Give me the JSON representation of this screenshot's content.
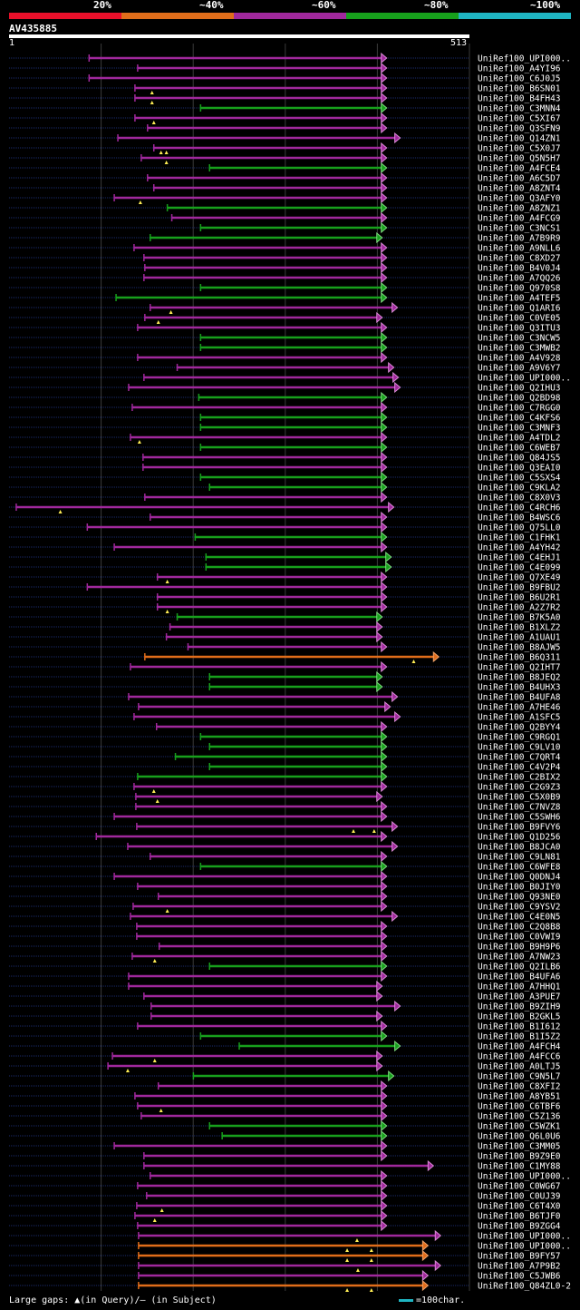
{
  "legend": {
    "items": [
      {
        "label": "20%",
        "color": "#e8102a"
      },
      {
        "label": "~40%",
        "color": "#e06d1a"
      },
      {
        "label": "~60%",
        "color": "#a0289c"
      },
      {
        "label": "~80%",
        "color": "#17a01c"
      },
      {
        "label": "~100%",
        "color": "#1fb5c2"
      }
    ]
  },
  "query": {
    "name": "AV435885",
    "start": "1",
    "end": "513"
  },
  "footer": {
    "gaps_text": "Large gaps: ▲(in Query)/– (in Subject)",
    "scale_text": "=100char."
  },
  "chart_data": {
    "type": "alignment",
    "query_length": 513,
    "gridlines": [
      20,
      40,
      60,
      80,
      100
    ],
    "hits": [
      {
        "name": "UniRef100_UPI000..",
        "start": 90,
        "end": 420,
        "color": "mag",
        "gaps": []
      },
      {
        "name": "UniRef100_A4YI96",
        "start": 144,
        "end": 420,
        "color": "mag",
        "gaps": []
      },
      {
        "name": "UniRef100_C6J0J5",
        "start": 90,
        "end": 420,
        "color": "mag",
        "gaps": []
      },
      {
        "name": "UniRef100_B6SN01",
        "start": 141,
        "end": 420,
        "color": "mag",
        "gaps": [
          160
        ]
      },
      {
        "name": "UniRef100_B4FH43",
        "start": 141,
        "end": 420,
        "color": "mag",
        "gaps": [
          160
        ]
      },
      {
        "name": "UniRef100_C3MNN4",
        "start": 214,
        "end": 420,
        "color": "grn",
        "gaps": []
      },
      {
        "name": "UniRef100_C5XI67",
        "start": 141,
        "end": 420,
        "color": "mag",
        "gaps": [
          162
        ]
      },
      {
        "name": "UniRef100_Q3SFN9",
        "start": 155,
        "end": 420,
        "color": "mag",
        "gaps": []
      },
      {
        "name": "UniRef100_Q14ZN1",
        "start": 122,
        "end": 435,
        "color": "mag",
        "gaps": []
      },
      {
        "name": "UniRef100_C5X0J7",
        "start": 162,
        "end": 420,
        "color": "mag",
        "gaps": [
          170,
          176
        ]
      },
      {
        "name": "UniRef100_Q5N5H7",
        "start": 148,
        "end": 420,
        "color": "mag",
        "gaps": [
          176
        ]
      },
      {
        "name": "UniRef100_A4FCE4",
        "start": 224,
        "end": 420,
        "color": "grn",
        "gaps": []
      },
      {
        "name": "UniRef100_A6C5D7",
        "start": 155,
        "end": 420,
        "color": "mag",
        "gaps": []
      },
      {
        "name": "UniRef100_A8ZNT4",
        "start": 162,
        "end": 420,
        "color": "mag",
        "gaps": []
      },
      {
        "name": "UniRef100_Q3AFY0",
        "start": 118,
        "end": 420,
        "color": "mag",
        "gaps": [
          147
        ]
      },
      {
        "name": "UniRef100_A8ZNZ1",
        "start": 177,
        "end": 420,
        "color": "grn",
        "gaps": []
      },
      {
        "name": "UniRef100_A4FCG9",
        "start": 182,
        "end": 420,
        "color": "mag",
        "gaps": []
      },
      {
        "name": "UniRef100_C3NCS1",
        "start": 214,
        "end": 420,
        "color": "grn",
        "gaps": []
      },
      {
        "name": "UniRef100_A7B9R9",
        "start": 158,
        "end": 415,
        "color": "grn",
        "gaps": []
      },
      {
        "name": "UniRef100_A9NLL6",
        "start": 140,
        "end": 420,
        "color": "mag",
        "gaps": []
      },
      {
        "name": "UniRef100_C8XD27",
        "start": 151,
        "end": 420,
        "color": "mag",
        "gaps": []
      },
      {
        "name": "UniRef100_B4V0J4",
        "start": 152,
        "end": 420,
        "color": "mag",
        "gaps": []
      },
      {
        "name": "UniRef100_A7QQ26",
        "start": 151,
        "end": 420,
        "color": "mag",
        "gaps": []
      },
      {
        "name": "UniRef100_Q970S8",
        "start": 214,
        "end": 420,
        "color": "grn",
        "gaps": []
      },
      {
        "name": "UniRef100_A4TEF5",
        "start": 120,
        "end": 420,
        "color": "grn",
        "gaps": []
      },
      {
        "name": "UniRef100_Q1ARI6",
        "start": 158,
        "end": 432,
        "color": "mag",
        "gaps": [
          181
        ]
      },
      {
        "name": "UniRef100_C0VE05",
        "start": 152,
        "end": 415,
        "color": "mag",
        "gaps": [
          167
        ]
      },
      {
        "name": "UniRef100_Q3ITU3",
        "start": 144,
        "end": 420,
        "color": "mag",
        "gaps": []
      },
      {
        "name": "UniRef100_C3NCW5",
        "start": 214,
        "end": 420,
        "color": "grn",
        "gaps": []
      },
      {
        "name": "UniRef100_C3MWB2",
        "start": 214,
        "end": 420,
        "color": "grn",
        "gaps": []
      },
      {
        "name": "UniRef100_A4V928",
        "start": 144,
        "end": 420,
        "color": "mag",
        "gaps": []
      },
      {
        "name": "UniRef100_A9V6Y7",
        "start": 188,
        "end": 428,
        "color": "mag",
        "gaps": []
      },
      {
        "name": "UniRef100_UPI000..",
        "start": 151,
        "end": 433,
        "color": "mag",
        "gaps": []
      },
      {
        "name": "UniRef100_Q2IHU3",
        "start": 134,
        "end": 435,
        "color": "mag",
        "gaps": []
      },
      {
        "name": "UniRef100_Q2BD98",
        "start": 212,
        "end": 420,
        "color": "grn",
        "gaps": []
      },
      {
        "name": "UniRef100_C7RGG0",
        "start": 138,
        "end": 420,
        "color": "mag",
        "gaps": []
      },
      {
        "name": "UniRef100_C4KFS6",
        "start": 214,
        "end": 420,
        "color": "grn",
        "gaps": []
      },
      {
        "name": "UniRef100_C3MNF3",
        "start": 214,
        "end": 420,
        "color": "grn",
        "gaps": []
      },
      {
        "name": "UniRef100_A4TDL2",
        "start": 136,
        "end": 420,
        "color": "mag",
        "gaps": [
          146
        ]
      },
      {
        "name": "UniRef100_C6WEB7",
        "start": 214,
        "end": 420,
        "color": "grn",
        "gaps": []
      },
      {
        "name": "UniRef100_Q84JS5",
        "start": 150,
        "end": 420,
        "color": "mag",
        "gaps": []
      },
      {
        "name": "UniRef100_Q3EAI0",
        "start": 150,
        "end": 420,
        "color": "mag",
        "gaps": []
      },
      {
        "name": "UniRef100_C5SXS4",
        "start": 214,
        "end": 420,
        "color": "grn",
        "gaps": []
      },
      {
        "name": "UniRef100_C9KLA2",
        "start": 224,
        "end": 420,
        "color": "grn",
        "gaps": []
      },
      {
        "name": "UniRef100_C8X0V3",
        "start": 152,
        "end": 420,
        "color": "mag",
        "gaps": []
      },
      {
        "name": "UniRef100_C4RCH6",
        "start": 9,
        "end": 428,
        "color": "mag",
        "gaps": [
          58
        ]
      },
      {
        "name": "UniRef100_B4WSC6",
        "start": 158,
        "end": 420,
        "color": "mag",
        "gaps": []
      },
      {
        "name": "UniRef100_Q75LL0",
        "start": 88,
        "end": 420,
        "color": "mag",
        "gaps": []
      },
      {
        "name": "UniRef100_C1FHK1",
        "start": 208,
        "end": 420,
        "color": "grn",
        "gaps": []
      },
      {
        "name": "UniRef100_A4YH42",
        "start": 118,
        "end": 420,
        "color": "mag",
        "gaps": []
      },
      {
        "name": "UniRef100_C4EHJ1",
        "start": 220,
        "end": 425,
        "color": "grn",
        "gaps": []
      },
      {
        "name": "UniRef100_C4E099",
        "start": 220,
        "end": 425,
        "color": "grn",
        "gaps": []
      },
      {
        "name": "UniRef100_Q7XE49",
        "start": 166,
        "end": 420,
        "color": "mag",
        "gaps": [
          177
        ]
      },
      {
        "name": "UniRef100_B9FBU2",
        "start": 88,
        "end": 420,
        "color": "mag",
        "gaps": []
      },
      {
        "name": "UniRef100_B6U2R1",
        "start": 166,
        "end": 420,
        "color": "mag",
        "gaps": []
      },
      {
        "name": "UniRef100_A2Z7R2",
        "start": 166,
        "end": 420,
        "color": "mag",
        "gaps": [
          177
        ]
      },
      {
        "name": "UniRef100_B7K5A0",
        "start": 188,
        "end": 415,
        "color": "grn",
        "gaps": []
      },
      {
        "name": "UniRef100_B1XLZ2",
        "start": 180,
        "end": 415,
        "color": "mag",
        "gaps": []
      },
      {
        "name": "UniRef100_A1UAU1",
        "start": 176,
        "end": 415,
        "color": "mag",
        "gaps": []
      },
      {
        "name": "UniRef100_B8AJW5",
        "start": 200,
        "end": 420,
        "color": "mag",
        "gaps": []
      },
      {
        "name": "UniRef100_B6Q311",
        "start": 152,
        "end": 478,
        "color": "org",
        "gaps": [
          451
        ]
      },
      {
        "name": "UniRef100_Q2IHT7",
        "start": 136,
        "end": 420,
        "color": "mag",
        "gaps": []
      },
      {
        "name": "UniRef100_B8JEQ2",
        "start": 224,
        "end": 415,
        "color": "grn",
        "gaps": []
      },
      {
        "name": "UniRef100_B4UHX3",
        "start": 224,
        "end": 415,
        "color": "grn",
        "gaps": []
      },
      {
        "name": "UniRef100_B4UFA8",
        "start": 134,
        "end": 432,
        "color": "mag",
        "gaps": []
      },
      {
        "name": "UniRef100_A7HE46",
        "start": 145,
        "end": 424,
        "color": "mag",
        "gaps": []
      },
      {
        "name": "UniRef100_A1SFC5",
        "start": 140,
        "end": 435,
        "color": "mag",
        "gaps": []
      },
      {
        "name": "UniRef100_Q2BYY4",
        "start": 165,
        "end": 420,
        "color": "mag",
        "gaps": []
      },
      {
        "name": "UniRef100_C9RGQ1",
        "start": 214,
        "end": 420,
        "color": "grn",
        "gaps": []
      },
      {
        "name": "UniRef100_C9LV10",
        "start": 224,
        "end": 420,
        "color": "grn",
        "gaps": []
      },
      {
        "name": "UniRef100_C7QRT4",
        "start": 186,
        "end": 420,
        "color": "grn",
        "gaps": []
      },
      {
        "name": "UniRef100_C4V2P4",
        "start": 224,
        "end": 420,
        "color": "grn",
        "gaps": []
      },
      {
        "name": "UniRef100_C2BIX2",
        "start": 144,
        "end": 420,
        "color": "grn",
        "gaps": []
      },
      {
        "name": "UniRef100_C2G9Z3",
        "start": 140,
        "end": 420,
        "color": "mag",
        "gaps": [
          162
        ]
      },
      {
        "name": "UniRef100_C5X0B9",
        "start": 142,
        "end": 415,
        "color": "mag",
        "gaps": [
          166
        ]
      },
      {
        "name": "UniRef100_C7NVZ8",
        "start": 142,
        "end": 420,
        "color": "mag",
        "gaps": []
      },
      {
        "name": "UniRef100_C5SWH6",
        "start": 118,
        "end": 420,
        "color": "mag",
        "gaps": []
      },
      {
        "name": "UniRef100_B9FVY6",
        "start": 143,
        "end": 432,
        "color": "mag",
        "gaps": [
          384,
          407
        ]
      },
      {
        "name": "UniRef100_Q1D256",
        "start": 98,
        "end": 420,
        "color": "mag",
        "gaps": []
      },
      {
        "name": "UniRef100_B8JCA0",
        "start": 133,
        "end": 432,
        "color": "mag",
        "gaps": []
      },
      {
        "name": "UniRef100_C9LN81",
        "start": 158,
        "end": 420,
        "color": "mag",
        "gaps": []
      },
      {
        "name": "UniRef100_C6WFE8",
        "start": 214,
        "end": 420,
        "color": "grn",
        "gaps": []
      },
      {
        "name": "UniRef100_Q0DNJ4",
        "start": 118,
        "end": 420,
        "color": "mag",
        "gaps": []
      },
      {
        "name": "UniRef100_B0JIY0",
        "start": 144,
        "end": 420,
        "color": "mag",
        "gaps": []
      },
      {
        "name": "UniRef100_Q93NE0",
        "start": 167,
        "end": 420,
        "color": "mag",
        "gaps": []
      },
      {
        "name": "UniRef100_C9YSV2",
        "start": 139,
        "end": 420,
        "color": "mag",
        "gaps": [
          177
        ]
      },
      {
        "name": "UniRef100_C4E0N5",
        "start": 136,
        "end": 432,
        "color": "mag",
        "gaps": []
      },
      {
        "name": "UniRef100_C2Q8B8",
        "start": 143,
        "end": 420,
        "color": "mag",
        "gaps": []
      },
      {
        "name": "UniRef100_C0VWI9",
        "start": 143,
        "end": 420,
        "color": "mag",
        "gaps": []
      },
      {
        "name": "UniRef100_B9H9P6",
        "start": 168,
        "end": 420,
        "color": "mag",
        "gaps": []
      },
      {
        "name": "UniRef100_A7NW23",
        "start": 138,
        "end": 420,
        "color": "mag",
        "gaps": [
          163
        ]
      },
      {
        "name": "UniRef100_Q2ILB6",
        "start": 224,
        "end": 420,
        "color": "grn",
        "gaps": []
      },
      {
        "name": "UniRef100_B4UFA6",
        "start": 134,
        "end": 420,
        "color": "mag",
        "gaps": []
      },
      {
        "name": "UniRef100_A7HHQ1",
        "start": 134,
        "end": 415,
        "color": "mag",
        "gaps": []
      },
      {
        "name": "UniRef100_A3PUE7",
        "start": 151,
        "end": 415,
        "color": "mag",
        "gaps": []
      },
      {
        "name": "UniRef100_B9ZIH9",
        "start": 159,
        "end": 435,
        "color": "mag",
        "gaps": []
      },
      {
        "name": "UniRef100_B2GKL5",
        "start": 159,
        "end": 415,
        "color": "mag",
        "gaps": []
      },
      {
        "name": "UniRef100_B1I612",
        "start": 144,
        "end": 420,
        "color": "mag",
        "gaps": []
      },
      {
        "name": "UniRef100_B1I5Z2",
        "start": 214,
        "end": 420,
        "color": "grn",
        "gaps": []
      },
      {
        "name": "UniRef100_A4FCH4",
        "start": 257,
        "end": 435,
        "color": "grn",
        "gaps": []
      },
      {
        "name": "UniRef100_A4FCC6",
        "start": 116,
        "end": 415,
        "color": "mag",
        "gaps": [
          163
        ]
      },
      {
        "name": "UniRef100_A0LTJ5",
        "start": 111,
        "end": 415,
        "color": "mag",
        "gaps": [
          133
        ]
      },
      {
        "name": "UniRef100_C9N5L7",
        "start": 206,
        "end": 428,
        "color": "grn",
        "gaps": []
      },
      {
        "name": "UniRef100_C8XFI2",
        "start": 167,
        "end": 420,
        "color": "mag",
        "gaps": []
      },
      {
        "name": "UniRef100_A8YB51",
        "start": 141,
        "end": 420,
        "color": "mag",
        "gaps": []
      },
      {
        "name": "UniRef100_C6TBF6",
        "start": 144,
        "end": 420,
        "color": "mag",
        "gaps": [
          170
        ]
      },
      {
        "name": "UniRef100_C5Z136",
        "start": 148,
        "end": 420,
        "color": "mag",
        "gaps": []
      },
      {
        "name": "UniRef100_C5WZK1",
        "start": 224,
        "end": 420,
        "color": "grn",
        "gaps": []
      },
      {
        "name": "UniRef100_Q6L0U6",
        "start": 238,
        "end": 420,
        "color": "grn",
        "gaps": []
      },
      {
        "name": "UniRef100_C3MM05",
        "start": 118,
        "end": 420,
        "color": "mag",
        "gaps": []
      },
      {
        "name": "UniRef100_B9Z9E0",
        "start": 151,
        "end": 420,
        "color": "mag",
        "gaps": []
      },
      {
        "name": "UniRef100_C1MY88",
        "start": 151,
        "end": 472,
        "color": "mag",
        "gaps": []
      },
      {
        "name": "UniRef100_UPI000..",
        "start": 158,
        "end": 420,
        "color": "mag",
        "gaps": []
      },
      {
        "name": "UniRef100_C0WG67",
        "start": 144,
        "end": 420,
        "color": "mag",
        "gaps": []
      },
      {
        "name": "UniRef100_C0UJ39",
        "start": 154,
        "end": 420,
        "color": "mag",
        "gaps": []
      },
      {
        "name": "UniRef100_C6T4X0",
        "start": 143,
        "end": 420,
        "color": "mag",
        "gaps": [
          171
        ]
      },
      {
        "name": "UniRef100_B6TJF0",
        "start": 141,
        "end": 420,
        "color": "mag",
        "gaps": [
          163
        ]
      },
      {
        "name": "UniRef100_B9ZGG4",
        "start": 144,
        "end": 420,
        "color": "mag",
        "gaps": []
      },
      {
        "name": "UniRef100_UPI000..",
        "start": 145,
        "end": 480,
        "color": "mag",
        "gaps": [
          388
        ]
      },
      {
        "name": "UniRef100_UPI000..",
        "start": 145,
        "end": 466,
        "color": "org",
        "gaps": [
          377,
          404
        ]
      },
      {
        "name": "UniRef100_B9FY57",
        "start": 145,
        "end": 466,
        "color": "org",
        "gaps": [
          377,
          404
        ]
      },
      {
        "name": "UniRef100_A7P9B2",
        "start": 145,
        "end": 480,
        "color": "mag",
        "gaps": [
          389
        ]
      },
      {
        "name": "UniRef100_C5JWB6",
        "start": 145,
        "end": 466,
        "color": "mag",
        "gaps": []
      },
      {
        "name": "UniRef100_Q84ZL0-2",
        "start": 145,
        "end": 466,
        "color": "org",
        "gaps": [
          377,
          404
        ]
      }
    ]
  }
}
